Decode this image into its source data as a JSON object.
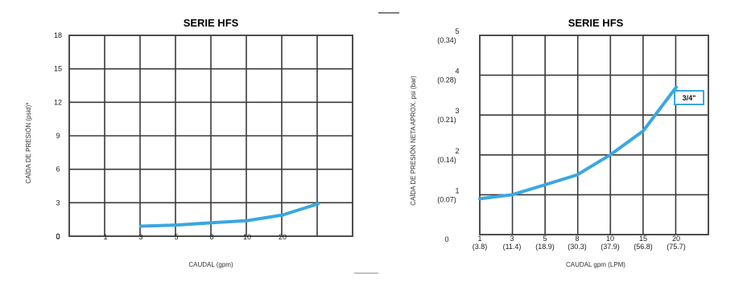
{
  "accent": "#3aa7e0",
  "chart_data": [
    {
      "type": "line",
      "title": "SERIE HFS",
      "xlabel": "CAUDAL (gpm)",
      "ylabel": "CAÍDA DE PRESIÓN (psid)*",
      "x_tick_labels": [
        "0",
        "1",
        "3",
        "5",
        "8",
        "10",
        "20"
      ],
      "y_ticks": [
        0,
        3,
        6,
        9,
        12,
        15,
        18
      ],
      "ylim": [
        0,
        18
      ],
      "grid": true,
      "series": [
        {
          "color": "#3aa7e0",
          "x": [
            3,
            5,
            8,
            10,
            20,
            30
          ],
          "y": [
            0.9,
            1.0,
            1.2,
            1.4,
            1.9,
            2.9
          ]
        }
      ]
    },
    {
      "type": "line",
      "title": "SERIE HFS",
      "xlabel": "CAUDAL gpm (LPM)",
      "ylabel": "CAÍDA DE PRESIÓN NETA APROX. psi (bar)",
      "x_tick_labels": [
        {
          "top": "1",
          "bottom": "(3.8)"
        },
        {
          "top": "3",
          "bottom": "(11.4)"
        },
        {
          "top": "5",
          "bottom": "(18.9)"
        },
        {
          "top": "8",
          "bottom": "(30.3)"
        },
        {
          "top": "10",
          "bottom": "(37.9)"
        },
        {
          "top": "15",
          "bottom": "(56.8)"
        },
        {
          "top": "20",
          "bottom": "(75.7)"
        }
      ],
      "y_tick_labels": [
        {
          "top": "",
          "bottom": "0"
        },
        {
          "top": "1",
          "bottom": "(0.07)"
        },
        {
          "top": "2",
          "bottom": "(0.14)"
        },
        {
          "top": "3",
          "bottom": "(0.21)"
        },
        {
          "top": "4",
          "bottom": "(0.28)"
        },
        {
          "top": "5",
          "bottom": "(0.34)"
        }
      ],
      "ylim": [
        0,
        5
      ],
      "grid": true,
      "series": [
        {
          "name": "3/4\"",
          "color": "#3aa7e0",
          "x": [
            1,
            3,
            5,
            8,
            10,
            15,
            20
          ],
          "y": [
            0.9,
            1.0,
            1.25,
            1.5,
            2.0,
            2.6,
            3.7
          ]
        }
      ]
    }
  ]
}
